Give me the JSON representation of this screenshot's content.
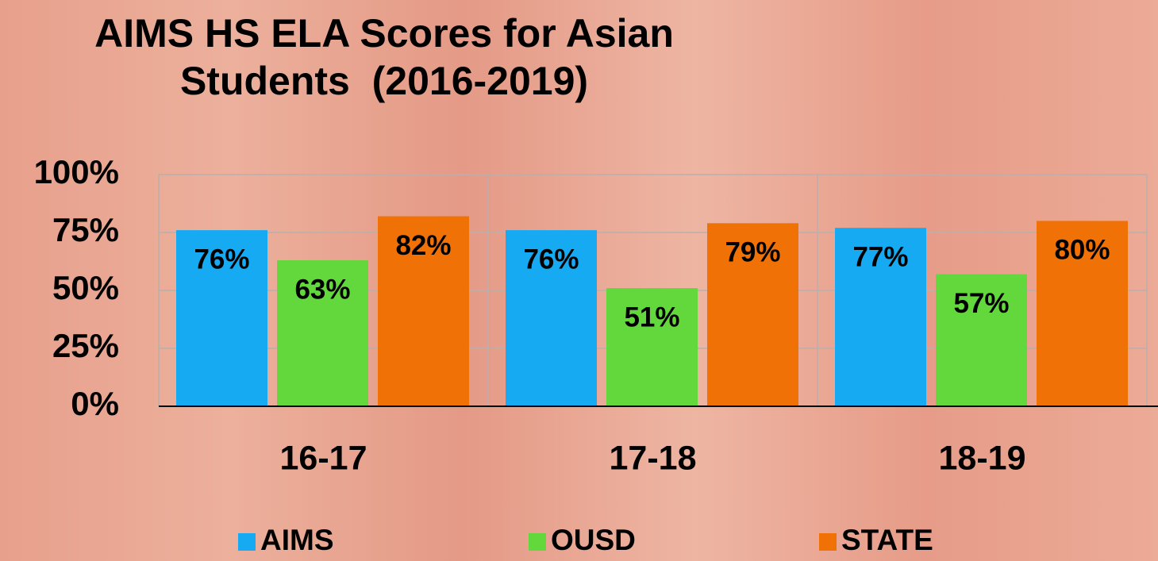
{
  "chart_data": {
    "type": "bar",
    "title": "AIMS HS ELA Scores for Asian Students  (2016-2019)",
    "categories": [
      "16-17",
      "17-18",
      "18-19"
    ],
    "series": [
      {
        "name": "AIMS",
        "color": "#16aaf2",
        "values": [
          76,
          76,
          77
        ],
        "value_labels": [
          "76%",
          "76%",
          "77%"
        ]
      },
      {
        "name": "OUSD",
        "color": "#63d83c",
        "values": [
          63,
          51,
          57
        ],
        "value_labels": [
          "63%",
          "51%",
          "57%"
        ]
      },
      {
        "name": "STATE",
        "color": "#f07106",
        "values": [
          82,
          79,
          80
        ],
        "value_labels": [
          "82%",
          "79%",
          "80%"
        ]
      }
    ],
    "ylim": [
      0,
      100
    ],
    "yticks": [
      {
        "value": 0,
        "label": "0%"
      },
      {
        "value": 25,
        "label": "25%"
      },
      {
        "value": 50,
        "label": "50%"
      },
      {
        "value": 75,
        "label": "75%"
      },
      {
        "value": 100,
        "label": "100%"
      }
    ],
    "grid": true,
    "legend": "bottom"
  }
}
